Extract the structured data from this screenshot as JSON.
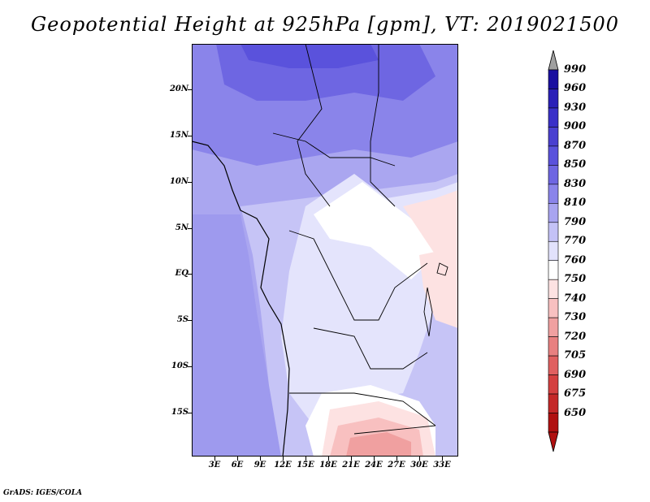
{
  "title": "Geopotential Height at 925hPa [gpm], VT: 2019021500",
  "footer": "GrADS: IGES/COLA",
  "map": {
    "region": "West-Central & Southern Africa",
    "lat_labels": [
      "20N",
      "15N",
      "10N",
      "5N",
      "EQ",
      "5S",
      "10S",
      "15S"
    ],
    "lon_labels": [
      "3E",
      "6E",
      "9E",
      "12E",
      "15E",
      "18E",
      "21E",
      "24E",
      "27E",
      "30E",
      "33E"
    ]
  },
  "colorbar": {
    "labels": [
      "990",
      "960",
      "930",
      "900",
      "870",
      "850",
      "830",
      "810",
      "790",
      "770",
      "760",
      "750",
      "740",
      "730",
      "720",
      "705",
      "690",
      "675",
      "650"
    ],
    "colors": [
      "#1a0fa0",
      "#2a1fb8",
      "#3a30c8",
      "#4a40d0",
      "#5a52dc",
      "#6e66e2",
      "#8a84ea",
      "#a8a4f0",
      "#c4c2f6",
      "#e2e2fc",
      "#ffffff",
      "#fde2e2",
      "#f8c0c0",
      "#f0a0a0",
      "#e88080",
      "#e06060",
      "#d44040",
      "#c42828",
      "#b01010"
    ],
    "top_arrow_color": "#a0a0a0",
    "bottom_arrow_color": "#b01010"
  }
}
